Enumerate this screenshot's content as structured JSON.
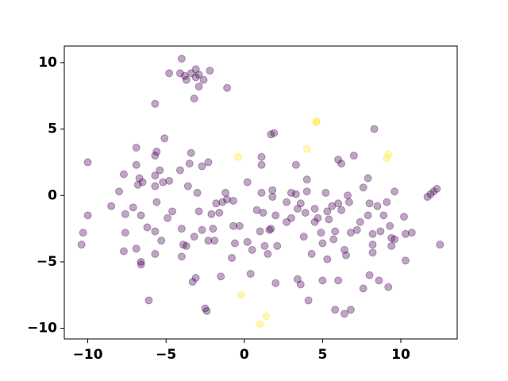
{
  "chart_data": {
    "type": "scatter",
    "xlim": [
      -11.5,
      13.6
    ],
    "ylim": [
      -10.8,
      11.25
    ],
    "xticks": [
      {
        "value": -10,
        "label": "−10"
      },
      {
        "value": -5,
        "label": "−5"
      },
      0,
      5,
      10
    ],
    "yticks": [
      {
        "value": -10,
        "label": "−10"
      },
      {
        "value": -5,
        "label": "−5"
      },
      0,
      5,
      10
    ],
    "series": [
      {
        "color": "#440154",
        "x": [
          -4.0,
          -4.8,
          -4.1,
          -3.7,
          -3.8,
          -3.4,
          -3.1,
          -2.9,
          -3.1,
          -2.2,
          -2.6,
          -2.9,
          -3.2,
          -1.1,
          -5.7,
          -10.0,
          -10.3,
          -10.4,
          -10.0,
          -8.5,
          -8.0,
          -7.7,
          -7.6,
          -7.6,
          -7.7,
          -7.1,
          -6.9,
          -6.9,
          -6.8,
          -6.7,
          -6.6,
          -6.6,
          -6.6,
          -6.9,
          -6.2,
          -6.1,
          -6.5,
          -5.7,
          -5.6,
          -5.7,
          -5.7,
          -5.4,
          -5.6,
          -5.7,
          -5.7,
          -5.3,
          -5.2,
          -5.1,
          -4.9,
          -4.8,
          -4.6,
          -4.1,
          -4.0,
          -4.0,
          -3.9,
          -3.7,
          -3.6,
          -3.5,
          -3.4,
          -3.2,
          -3.3,
          -3.1,
          -3.0,
          -2.9,
          -2.7,
          -2.7,
          -2.5,
          -2.4,
          -2.3,
          -2.3,
          -2.1,
          -2.0,
          -1.9,
          -1.8,
          -1.6,
          -1.4,
          -1.5,
          -1.2,
          -1.1,
          -0.7,
          -0.7,
          -0.8,
          -0.6,
          -0.3,
          0.2,
          0.2,
          0.4,
          0.5,
          0.8,
          1.1,
          1.1,
          1.1,
          1.2,
          1.0,
          1.3,
          1.6,
          1.7,
          1.7,
          1.9,
          1.5,
          1.8,
          1.8,
          2.0,
          2.1,
          2.0,
          2.7,
          2.7,
          3.0,
          3.0,
          3.3,
          3.3,
          3.4,
          3.4,
          3.6,
          3.6,
          3.8,
          3.9,
          4.0,
          4.0,
          4.1,
          4.3,
          4.5,
          4.5,
          4.7,
          4.9,
          5.0,
          5.0,
          5.2,
          5.3,
          5.3,
          5.4,
          5.6,
          5.7,
          5.8,
          5.8,
          6.0,
          6.0,
          6.2,
          6.0,
          6.2,
          6.4,
          6.5,
          6.4,
          6.6,
          6.7,
          6.8,
          6.8,
          7.0,
          7.2,
          7.4,
          7.6,
          7.6,
          7.9,
          7.9,
          8.0,
          8.2,
          8.2,
          8.2,
          8.3,
          8.5,
          8.6,
          8.7,
          8.9,
          9.1,
          9.2,
          9.3,
          9.4,
          9.6,
          9.4,
          9.6,
          10.2,
          10.3,
          10.3,
          10.7,
          11.7,
          11.9,
          12.1,
          12.3,
          12.5,
          8.0
        ],
        "values": [
          10.3,
          9.2,
          9.2,
          8.7,
          9.0,
          9.2,
          9.5,
          9.1,
          8.9,
          9.4,
          8.7,
          8.2,
          7.3,
          8.1,
          6.9,
          2.5,
          -2.8,
          -3.7,
          -1.5,
          -0.8,
          0.3,
          1.6,
          -1.4,
          -2.8,
          -4.2,
          -0.9,
          3.6,
          2.3,
          0.8,
          1.3,
          -1.5,
          -5.0,
          -5.2,
          -4.0,
          -2.4,
          -7.9,
          1.0,
          3.0,
          3.3,
          1.5,
          0.7,
          1.9,
          -0.5,
          -2.7,
          -4.4,
          -3.4,
          1.0,
          4.3,
          -1.7,
          1.1,
          -1.2,
          1.9,
          -2.5,
          -4.6,
          -3.7,
          -3.8,
          0.7,
          2.4,
          3.2,
          -3.1,
          -6.5,
          -6.2,
          0.2,
          -1.2,
          2.2,
          -2.6,
          -8.5,
          -8.7,
          2.5,
          -3.4,
          -1.4,
          -2.5,
          -3.4,
          -0.6,
          -1.3,
          -0.5,
          -6.1,
          0.2,
          -0.3,
          -0.4,
          -2.3,
          -4.7,
          -3.6,
          -2.3,
          1.0,
          -3.5,
          -5.9,
          -4.1,
          -1.1,
          2.9,
          2.3,
          0.2,
          -1.3,
          -2.7,
          -3.8,
          -2.6,
          -2.5,
          4.6,
          4.7,
          -4.4,
          -0.1,
          0.4,
          -1.5,
          -3.8,
          -6.6,
          -2.0,
          -0.5,
          -1.7,
          0.2,
          2.3,
          0.1,
          -1.0,
          -6.3,
          -6.7,
          -0.6,
          -3.1,
          -1.3,
          0.3,
          1.2,
          -7.9,
          -4.4,
          -1.0,
          -2.0,
          -1.7,
          -2.8,
          -3.6,
          -6.4,
          0.2,
          -4.8,
          -1.2,
          -1.8,
          -0.8,
          -3.3,
          -2.7,
          -8.6,
          -6.4,
          -0.6,
          -1.1,
          2.7,
          2.4,
          -4.1,
          -4.5,
          -8.9,
          0.0,
          -0.5,
          -8.6,
          -2.8,
          3.0,
          -2.6,
          -2.0,
          -7.0,
          0.6,
          1.3,
          -1.5,
          -6.0,
          -2.9,
          -3.7,
          -4.3,
          5.0,
          -0.8,
          -6.4,
          -2.7,
          -1.5,
          -0.5,
          -6.9,
          -2.3,
          -3.2,
          -3.3,
          -3.8,
          0.3,
          -1.6,
          -2.9,
          -4.9,
          -2.8,
          -0.1,
          0.1,
          0.3,
          0.5,
          -3.7,
          -0.6
        ]
      },
      {
        "color": "#fde725",
        "x": [
          -0.4,
          4.6,
          4.6,
          4.0,
          9.2,
          9.1,
          -0.2,
          1.0,
          1.4
        ],
        "values": [
          2.9,
          5.6,
          5.5,
          3.5,
          3.1,
          2.8,
          -7.5,
          -9.7,
          -9.1
        ]
      }
    ]
  }
}
